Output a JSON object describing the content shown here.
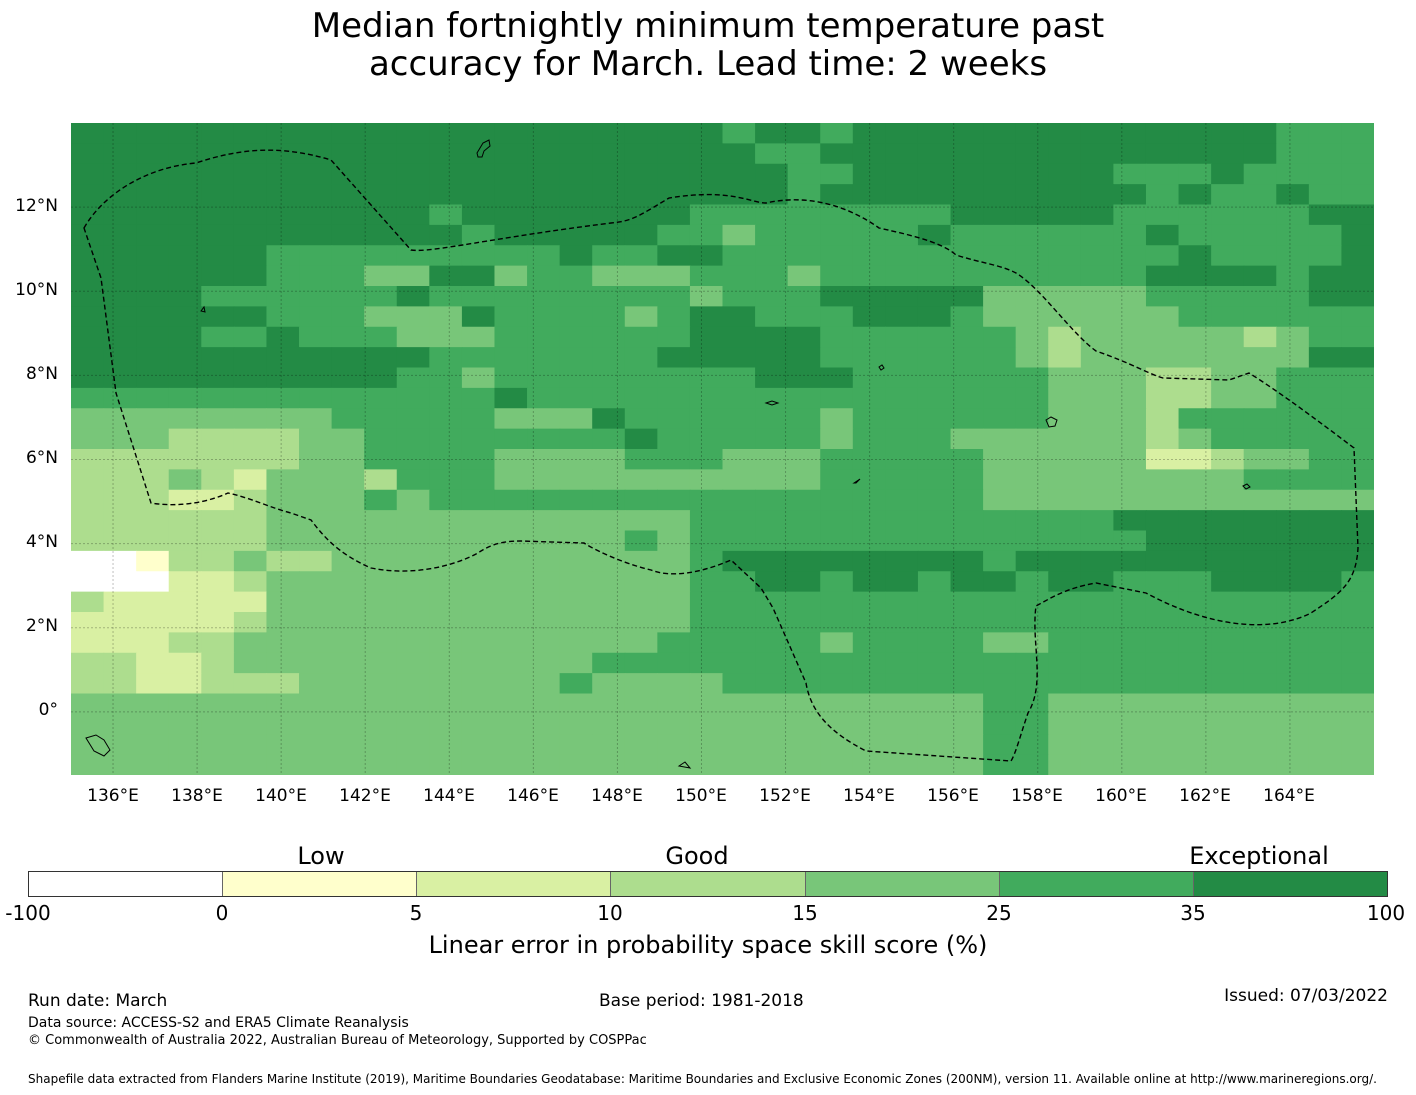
{
  "title": {
    "line1": "Median fortnightly minimum temperature past",
    "line2": "accuracy for March. Lead time: 2 weeks"
  },
  "map": {
    "lon_range": [
      135,
      166
    ],
    "lat_range": [
      -1.5,
      14
    ],
    "cell_deg": 0.833,
    "x_ticks": [
      "136°E",
      "138°E",
      "140°E",
      "142°E",
      "144°E",
      "146°E",
      "148°E",
      "150°E",
      "152°E",
      "154°E",
      "156°E",
      "158°E",
      "160°E",
      "162°E",
      "164°E"
    ],
    "x_tick_values": [
      136,
      138,
      140,
      142,
      144,
      146,
      148,
      150,
      152,
      154,
      156,
      158,
      160,
      162,
      164
    ],
    "y_ticks": [
      "12°N",
      "10°N",
      "8°N",
      "6°N",
      "4°N",
      "2°N",
      "0°"
    ],
    "y_tick_values": [
      12,
      10,
      8,
      6,
      4,
      2,
      0
    ],
    "grid_rows": [
      "6666666666666666666656656666666666666555",
      "6666666666666666666665566666666666666555",
      "6666666666666666666666556666666655565555",
      "6666666666666666666666566666666665655655",
      "6666666666656666666555555556666655555566",
      "6666666666665666665545555565555556555556",
      "6666665555555556556655555555555555655556",
      "6666665554466455444555455555555556666566",
      "6666555555655555555455566666444445555566",
      "6666665554446555545665556665444444555555",
      "6666556555444555555666655555543444443455",
      "6666666666655555556666655555543444444466",
      "6666666666554555555556665555554443344555",
      "5555555555555655555555555555554443344555",
      "4444444455555444655555545555554443555555",
      "4443333445555555565555545554444443455555",
      "3333333445555444455544455555444442234455",
      "3334324443555444444444455555444444445555",
      "3332234445455555555555555555444444444444",
      "3333334444444444444555555555555566666666",
      "3333334444444444454555555555555556666666",
      "0013343344444444444566666666566666666666",
      "0002234444444444444556656656656655566665",
      "3222224444444444444555555555555555555555",
      "2222234444444444444555555555555555555555",
      "2223344444444444445555545555445555555555",
      "3322344444444444555555555555555555555555",
      "3322333444444445444455555555555555555555",
      "4444444444444444444444444444554444444444",
      "4444444444444444444444444444554444444444",
      "4444444444444444444444444444554444444444",
      "4444444444444444444444444444554444444444"
    ],
    "colors": [
      "#ffffff",
      "#ffffcc",
      "#d9f0a3",
      "#addd8e",
      "#78c679",
      "#41ab5d",
      "#238b45"
    ],
    "eez_boundary_style": "dashed black"
  },
  "colorbar": {
    "colors": [
      "#ffffff",
      "#ffffcc",
      "#d9f0a3",
      "#addd8e",
      "#78c679",
      "#41ab5d",
      "#238b45"
    ],
    "ticks": [
      "-100",
      "0",
      "5",
      "10",
      "15",
      "25",
      "35",
      "100"
    ],
    "categories": [
      "Low",
      "Good",
      "Exceptional"
    ],
    "label": "Linear error in probability space skill score (%)"
  },
  "footer": {
    "run_date": "Run date: March",
    "base_period": "Base period: 1981-2018",
    "issued": "Issued: 07/03/2022",
    "data_source": "Data source: ACCESS-S2 and ERA5 Climate Reanalysis",
    "copyright": "© Commonwealth of Australia 2022, Australian Bureau of Meteorology, Supported by COSPPac",
    "shapefile": "Shapefile data extracted from Flanders Marine Institute (2019), Maritime Boundaries Geodatabase: Maritime Boundaries and Exclusive Economic Zones (200NM), version 11. Available online at http://www.marineregions.org/."
  }
}
